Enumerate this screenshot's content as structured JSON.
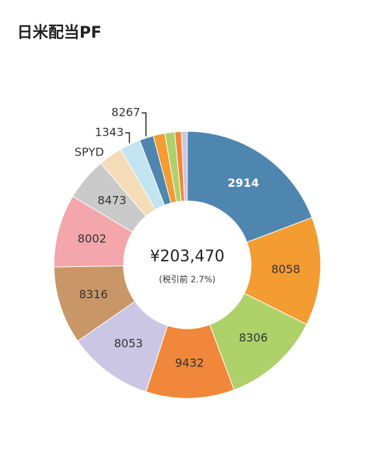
{
  "chart_data": {
    "type": "donut",
    "title": "日米配当PF",
    "center_value": "¥203,470",
    "center_note": "(税引前 2.7%)",
    "categories": [
      "2914",
      "8058",
      "8306",
      "9432",
      "8053",
      "8316",
      "8002",
      "8473",
      "SPYD",
      "1343",
      "8267",
      null,
      null,
      null,
      null
    ],
    "values": [
      19.2,
      13.1,
      11.9,
      10.7,
      10.3,
      9.4,
      8.8,
      5.2,
      2.9,
      2.5,
      1.7,
      1.4,
      1.2,
      0.8,
      0.7
    ],
    "colors": [
      "#4e86b0",
      "#f39c32",
      "#aed16a",
      "#f0873a",
      "#cbc6e3",
      "#c99668",
      "#f3a6ab",
      "#cacaca",
      "#f4dcb8",
      "#c2e3f0",
      "#4e86b0",
      "#f39c32",
      "#aed16a",
      "#f0873a",
      "#cbc6e3"
    ]
  }
}
